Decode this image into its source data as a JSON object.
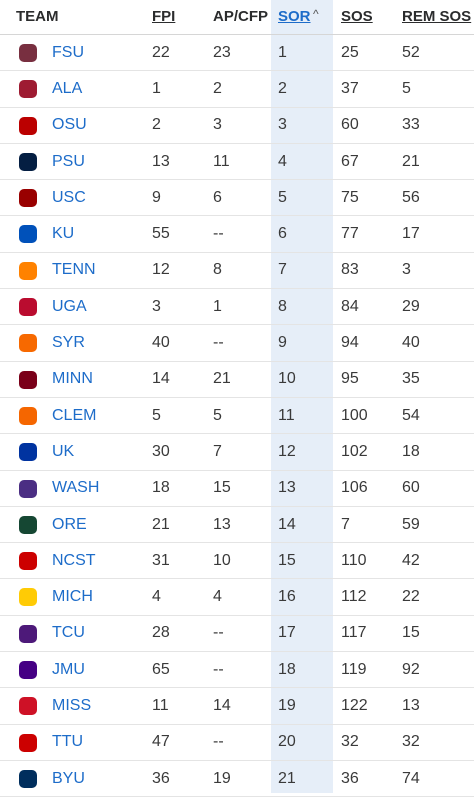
{
  "headers": {
    "team": "TEAM",
    "fpi": "FPI",
    "ap": "AP/CFP",
    "sor": "SOR",
    "sos": "SOS",
    "rem": "REM SOS",
    "sort_indicator": "^"
  },
  "rows": [
    {
      "team": "FSU",
      "fpi": "22",
      "ap": "23",
      "sor": "1",
      "sos": "25",
      "rem": "52",
      "logo_icon": "fsu-seminole-head-icon",
      "logo_color": "#782f40"
    },
    {
      "team": "ALA",
      "fpi": "1",
      "ap": "2",
      "sor": "2",
      "sos": "37",
      "rem": "5",
      "logo_icon": "alabama-script-a-icon",
      "logo_color": "#9e1b32"
    },
    {
      "team": "OSU",
      "fpi": "2",
      "ap": "3",
      "sor": "3",
      "sos": "60",
      "rem": "33",
      "logo_icon": "ohio-state-block-o-icon",
      "logo_color": "#bb0000"
    },
    {
      "team": "PSU",
      "fpi": "13",
      "ap": "11",
      "sor": "4",
      "sos": "67",
      "rem": "21",
      "logo_icon": "penn-state-lion-icon",
      "logo_color": "#041e42"
    },
    {
      "team": "USC",
      "fpi": "9",
      "ap": "6",
      "sor": "5",
      "sos": "75",
      "rem": "56",
      "logo_icon": "usc-interlock-sc-icon",
      "logo_color": "#990000"
    },
    {
      "team": "KU",
      "fpi": "55",
      "ap": "--",
      "sor": "6",
      "sos": "77",
      "rem": "17",
      "logo_icon": "kansas-jayhawk-icon",
      "logo_color": "#0051ba"
    },
    {
      "team": "TENN",
      "fpi": "12",
      "ap": "8",
      "sor": "7",
      "sos": "83",
      "rem": "3",
      "logo_icon": "tennessee-power-t-icon",
      "logo_color": "#ff8200"
    },
    {
      "team": "UGA",
      "fpi": "3",
      "ap": "1",
      "sor": "8",
      "sos": "84",
      "rem": "29",
      "logo_icon": "georgia-g-icon",
      "logo_color": "#ba0c2f"
    },
    {
      "team": "SYR",
      "fpi": "40",
      "ap": "--",
      "sor": "9",
      "sos": "94",
      "rem": "40",
      "logo_icon": "syracuse-block-s-icon",
      "logo_color": "#f76900"
    },
    {
      "team": "MINN",
      "fpi": "14",
      "ap": "21",
      "sor": "10",
      "sos": "95",
      "rem": "35",
      "logo_icon": "minnesota-block-m-icon",
      "logo_color": "#7a0019"
    },
    {
      "team": "CLEM",
      "fpi": "5",
      "ap": "5",
      "sor": "11",
      "sos": "100",
      "rem": "54",
      "logo_icon": "clemson-tiger-paw-icon",
      "logo_color": "#f56600"
    },
    {
      "team": "UK",
      "fpi": "30",
      "ap": "7",
      "sor": "12",
      "sos": "102",
      "rem": "18",
      "logo_icon": "kentucky-uk-icon",
      "logo_color": "#0033a0"
    },
    {
      "team": "WASH",
      "fpi": "18",
      "ap": "15",
      "sor": "13",
      "sos": "106",
      "rem": "60",
      "logo_icon": "washington-w-icon",
      "logo_color": "#4b2e83"
    },
    {
      "team": "ORE",
      "fpi": "21",
      "ap": "13",
      "sor": "14",
      "sos": "7",
      "rem": "59",
      "logo_icon": "oregon-o-icon",
      "logo_color": "#154733"
    },
    {
      "team": "NCST",
      "fpi": "31",
      "ap": "10",
      "sor": "15",
      "sos": "110",
      "rem": "42",
      "logo_icon": "nc-state-wolf-icon",
      "logo_color": "#cc0000"
    },
    {
      "team": "MICH",
      "fpi": "4",
      "ap": "4",
      "sor": "16",
      "sos": "112",
      "rem": "22",
      "logo_icon": "michigan-block-m-icon",
      "logo_color": "#ffcb05"
    },
    {
      "team": "TCU",
      "fpi": "28",
      "ap": "--",
      "sor": "17",
      "sos": "117",
      "rem": "15",
      "logo_icon": "tcu-letters-icon",
      "logo_color": "#4d1979"
    },
    {
      "team": "JMU",
      "fpi": "65",
      "ap": "--",
      "sor": "18",
      "sos": "119",
      "rem": "92",
      "logo_icon": "jmu-letters-icon",
      "logo_color": "#450084"
    },
    {
      "team": "MISS",
      "fpi": "11",
      "ap": "14",
      "sor": "19",
      "sos": "122",
      "rem": "13",
      "logo_icon": "ole-miss-script-icon",
      "logo_color": "#ce1126"
    },
    {
      "team": "TTU",
      "fpi": "47",
      "ap": "--",
      "sor": "20",
      "sos": "32",
      "rem": "32",
      "logo_icon": "texas-tech-double-t-icon",
      "logo_color": "#cc0000"
    },
    {
      "team": "BYU",
      "fpi": "36",
      "ap": "19",
      "sor": "21",
      "sos": "36",
      "rem": "74",
      "logo_icon": "byu-oval-icon",
      "logo_color": "#002e5d"
    }
  ]
}
